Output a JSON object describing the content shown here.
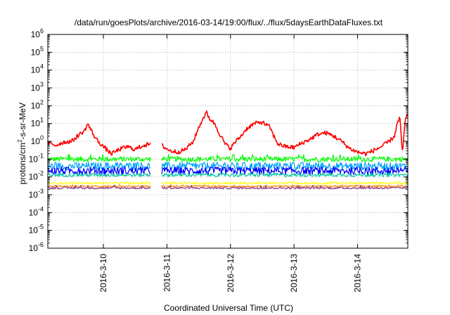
{
  "chart_data": {
    "type": "line",
    "title": "/data/run/goesPlots/archive/2016-03-14/19:00/flux/../flux/5daysEarthDataFluxes.txt",
    "xlabel": "Coordinated Universal Time (UTC)",
    "ylabel": "protons/cm²-s-sr-MeV",
    "ylabel_parts": {
      "pre": "protons/cm",
      "sup": "2",
      "post": "-s-sr-MeV"
    },
    "y_scale": "log",
    "ylim": [
      1e-06,
      1000000.0
    ],
    "y_ticks": [
      {
        "base": "10",
        "exp": "-6"
      },
      {
        "base": "10",
        "exp": "-5"
      },
      {
        "base": "10",
        "exp": "-4"
      },
      {
        "base": "10",
        "exp": "-3"
      },
      {
        "base": "10",
        "exp": "-2"
      },
      {
        "base": "10",
        "exp": "-1"
      },
      {
        "base": "10",
        "exp": "0"
      },
      {
        "base": "10",
        "exp": "1"
      },
      {
        "base": "10",
        "exp": "2"
      },
      {
        "base": "10",
        "exp": "3"
      },
      {
        "base": "10",
        "exp": "4"
      },
      {
        "base": "10",
        "exp": "5"
      },
      {
        "base": "10",
        "exp": "6"
      }
    ],
    "xlim": [
      "2016-03-09T03:00",
      "2016-03-14T19:00"
    ],
    "x_ticks": [
      {
        "label": "2016-3-10",
        "value": "2016-03-10T00:00"
      },
      {
        "label": "2016-3-11",
        "value": "2016-03-11T00:00"
      },
      {
        "label": "2016-3-12",
        "value": "2016-03-12T00:00"
      },
      {
        "label": "2016-3-13",
        "value": "2016-03-13T00:00"
      },
      {
        "label": "2016-3-14",
        "value": "2016-03-14T00:00"
      }
    ],
    "grid": true,
    "gap": [
      "2016-03-10T18:00",
      "2016-03-10T22:00"
    ],
    "series": [
      {
        "color": "#ff0000",
        "x": [
          "2016-03-09T03:00",
          "2016-03-09T06:00",
          "2016-03-09T09:00",
          "2016-03-09T12:00",
          "2016-03-09T15:00",
          "2016-03-09T17:00",
          "2016-03-09T18:00",
          "2016-03-09T21:00",
          "2016-03-10T00:00",
          "2016-03-10T03:00",
          "2016-03-10T06:00",
          "2016-03-10T09:00",
          "2016-03-10T12:00",
          "2016-03-10T15:00",
          "2016-03-10T18:00",
          "2016-03-10T22:00",
          "2016-03-11T01:00",
          "2016-03-11T04:00",
          "2016-03-11T07:00",
          "2016-03-11T10:00",
          "2016-03-11T12:00",
          "2016-03-11T14:00",
          "2016-03-11T15:00",
          "2016-03-11T16:00",
          "2016-03-11T18:00",
          "2016-03-11T20:00",
          "2016-03-11T22:00",
          "2016-03-12T00:00",
          "2016-03-12T02:00",
          "2016-03-12T04:00",
          "2016-03-12T06:00",
          "2016-03-12T09:00",
          "2016-03-12T12:00",
          "2016-03-12T15:00",
          "2016-03-12T16:00",
          "2016-03-12T18:00",
          "2016-03-12T21:00",
          "2016-03-13T00:00",
          "2016-03-13T03:00",
          "2016-03-13T06:00",
          "2016-03-13T09:00",
          "2016-03-13T12:00",
          "2016-03-13T15:00",
          "2016-03-13T18:00",
          "2016-03-13T21:00",
          "2016-03-14T00:00",
          "2016-03-14T03:00",
          "2016-03-14T06:00",
          "2016-03-14T09:00",
          "2016-03-14T12:00",
          "2016-03-14T14:00",
          "2016-03-14T15:00",
          "2016-03-14T16:00",
          "2016-03-14T17:00",
          "2016-03-14T18:00",
          "2016-03-14T19:00"
        ],
        "y": [
          0.8,
          0.6,
          0.9,
          1.0,
          2.5,
          4,
          10,
          1.5,
          0.5,
          0.2,
          0.35,
          0.5,
          0.35,
          0.6,
          0.7,
          0.6,
          0.3,
          0.25,
          0.35,
          1.0,
          6,
          25,
          40,
          20,
          10,
          2.5,
          0.7,
          0.4,
          1.0,
          2,
          5,
          10,
          12,
          6,
          2.5,
          0.7,
          0.5,
          0.45,
          0.8,
          1.3,
          2.5,
          3.0,
          2.0,
          1.0,
          0.4,
          0.25,
          0.2,
          0.3,
          0.5,
          1.0,
          2.0,
          10,
          20,
          0.2,
          15,
          30
        ],
        "noise": 0.12
      },
      {
        "color": "#00ff00",
        "level": 0.1,
        "noise": 0.15,
        "spike": 1.8
      },
      {
        "color": "#00a0ff",
        "level": 0.04,
        "noise": 0.22,
        "spike": 1.6
      },
      {
        "color": "#0000ff",
        "level": 0.022,
        "noise": 0.22,
        "spike": 1.5
      },
      {
        "color": "#00c8a0",
        "level": 0.013,
        "noise": 0.1,
        "spike": 1.2
      },
      {
        "color": "#ffff00",
        "level": 0.0045,
        "noise": 0.06,
        "spike": 1.2
      },
      {
        "color": "#ff8800",
        "level": 0.003,
        "noise": 0.05,
        "spike": 1.2
      },
      {
        "color": "#8b3a8b",
        "level": 0.0024,
        "noise": 0.06,
        "spike": 1.4
      }
    ]
  }
}
